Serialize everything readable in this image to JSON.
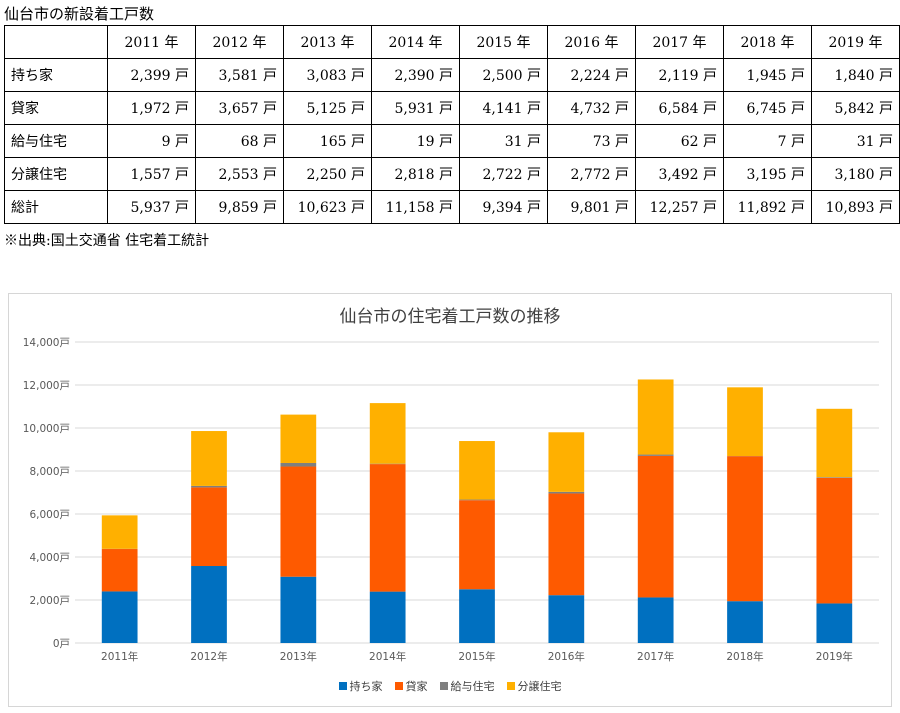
{
  "table_title": "仙台市の新設着工戸数",
  "unit": "戸",
  "years": [
    "2011 年",
    "2012 年",
    "2013 年",
    "2014 年",
    "2015 年",
    "2016 年",
    "2017 年",
    "2018 年",
    "2019 年"
  ],
  "rows": [
    {
      "label": "持ち家",
      "cells": [
        "2,399 戸",
        "3,581 戸",
        "3,083 戸",
        "2,390 戸",
        "2,500 戸",
        "2,224 戸",
        "2,119 戸",
        "1,945 戸",
        "1,840 戸"
      ]
    },
    {
      "label": "貸家",
      "cells": [
        "1,972 戸",
        "3,657 戸",
        "5,125 戸",
        "5,931 戸",
        "4,141 戸",
        "4,732 戸",
        "6,584 戸",
        "6,745 戸",
        "5,842 戸"
      ]
    },
    {
      "label": "給与住宅",
      "cells": [
        "9 戸",
        "68 戸",
        "165 戸",
        "19 戸",
        "31 戸",
        "73 戸",
        "62 戸",
        "7 戸",
        "31 戸"
      ]
    },
    {
      "label": "分譲住宅",
      "cells": [
        "1,557 戸",
        "2,553 戸",
        "2,250 戸",
        "2,818 戸",
        "2,722 戸",
        "2,772 戸",
        "3,492 戸",
        "3,195 戸",
        "3,180 戸"
      ]
    },
    {
      "label": "総計",
      "cells": [
        "5,937 戸",
        "9,859 戸",
        "10,623 戸",
        "11,158 戸",
        "9,394 戸",
        "9,801 戸",
        "12,257 戸",
        "11,892 戸",
        "10,893 戸"
      ]
    }
  ],
  "source": "※出典:国土交通省 住宅着工統計",
  "chart_data": {
    "type": "bar",
    "stacked": true,
    "title": "仙台市の住宅着工戸数の推移",
    "categories": [
      "2011年",
      "2012年",
      "2013年",
      "2014年",
      "2015年",
      "2016年",
      "2017年",
      "2018年",
      "2019年"
    ],
    "series": [
      {
        "name": "持ち家",
        "color": "#0070c0",
        "values": [
          2399,
          3581,
          3083,
          2390,
          2500,
          2224,
          2119,
          1945,
          1840
        ]
      },
      {
        "name": "貸家",
        "color": "#fe5a00",
        "values": [
          1972,
          3657,
          5125,
          5931,
          4141,
          4732,
          6584,
          6745,
          5842
        ]
      },
      {
        "name": "給与住宅",
        "color": "#7f7f7f",
        "values": [
          9,
          68,
          165,
          19,
          31,
          73,
          62,
          7,
          31
        ]
      },
      {
        "name": "分譲住宅",
        "color": "#ffb000",
        "values": [
          1557,
          2553,
          2250,
          2818,
          2722,
          2772,
          3492,
          3195,
          3180
        ]
      }
    ],
    "ylim": [
      0,
      14000
    ],
    "yticks": [
      0,
      2000,
      4000,
      6000,
      8000,
      10000,
      12000,
      14000
    ],
    "ytick_labels": [
      "0戸",
      "2,000戸",
      "4,000戸",
      "6,000戸",
      "8,000戸",
      "10,000戸",
      "12,000戸",
      "14,000戸"
    ],
    "grid": true,
    "legend": "bottom"
  }
}
